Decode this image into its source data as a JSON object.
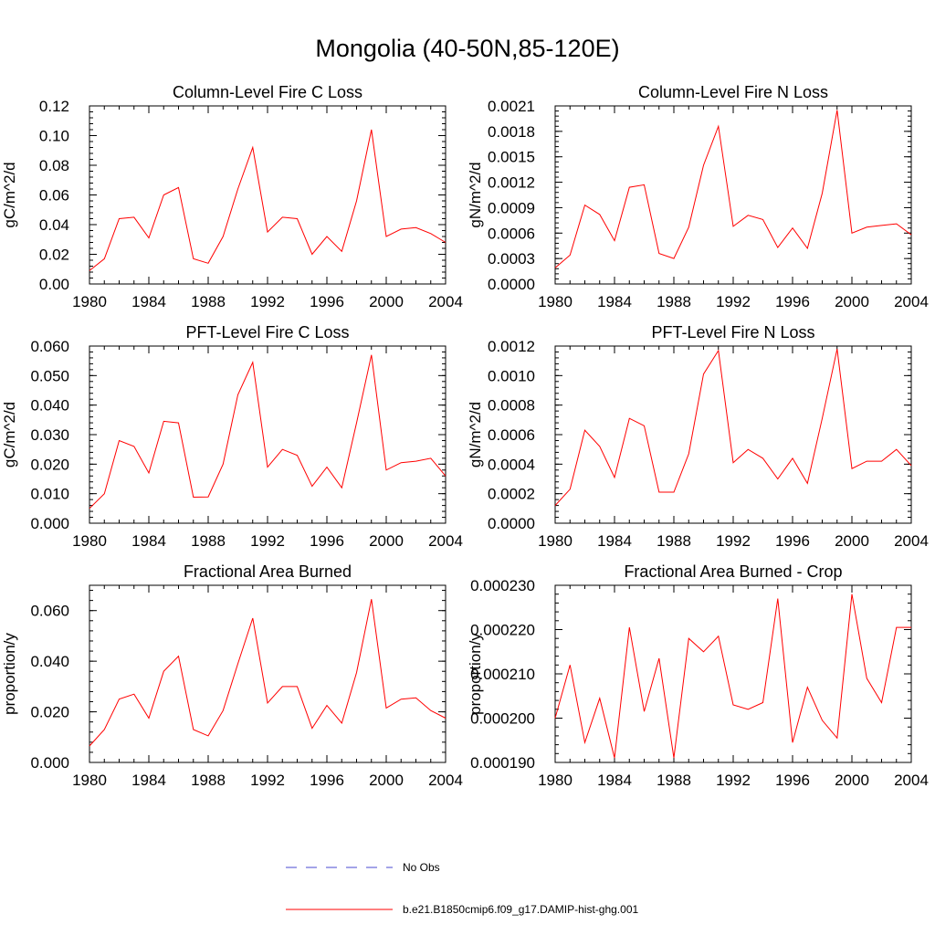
{
  "figure": {
    "title": "Mongolia (40-50N,85-120E)",
    "legend": [
      {
        "label": "No Obs",
        "style": "dashed",
        "color": "#4a4ad0"
      },
      {
        "label": "b.e21.B1850cmip6.f09_g17.DAMIP-hist-ghg.001",
        "style": "solid",
        "color": "#ff0000"
      }
    ]
  },
  "chart_data": [
    {
      "type": "line",
      "title": "Column-Level Fire C Loss",
      "ylabel": "gC/m^2/d",
      "xlim": [
        1980,
        2004
      ],
      "ylim": [
        0,
        0.12
      ],
      "xticks": [
        "1980",
        "1984",
        "1988",
        "1992",
        "1996",
        "2000",
        "2004"
      ],
      "yticks": [
        "0.00",
        "0.02",
        "0.04",
        "0.06",
        "0.08",
        "0.10",
        "0.12"
      ],
      "x": [
        1980,
        1981,
        1982,
        1983,
        1984,
        1985,
        1986,
        1987,
        1988,
        1989,
        1990,
        1991,
        1992,
        1993,
        1994,
        1995,
        1996,
        1997,
        1998,
        1999,
        2000,
        2001,
        2002,
        2003,
        2004
      ],
      "series": [
        {
          "color": "#ff0000",
          "values": [
            0.009,
            0.017,
            0.044,
            0.045,
            0.031,
            0.06,
            0.065,
            0.017,
            0.014,
            0.032,
            0.064,
            0.092,
            0.035,
            0.045,
            0.044,
            0.02,
            0.032,
            0.022,
            0.056,
            0.104,
            0.032,
            0.037,
            0.038,
            0.034,
            0.028
          ]
        }
      ]
    },
    {
      "type": "line",
      "title": "Column-Level Fire N Loss",
      "ylabel": "gN/m^2/d",
      "xlim": [
        1980,
        2004
      ],
      "ylim": [
        0,
        0.0021
      ],
      "xticks": [
        "1980",
        "1984",
        "1988",
        "1992",
        "1996",
        "2000",
        "2004"
      ],
      "yticks": [
        "0.0000",
        "0.0003",
        "0.0006",
        "0.0009",
        "0.0012",
        "0.0015",
        "0.0018",
        "0.0021"
      ],
      "x": [
        1980,
        1981,
        1982,
        1983,
        1984,
        1985,
        1986,
        1987,
        1988,
        1989,
        1990,
        1991,
        1992,
        1993,
        1994,
        1995,
        1996,
        1997,
        1998,
        1999,
        2000,
        2001,
        2002,
        2003,
        2004
      ],
      "series": [
        {
          "color": "#ff0000",
          "values": [
            0.00019,
            0.00034,
            0.00093,
            0.00082,
            0.00051,
            0.00114,
            0.00117,
            0.00036,
            0.0003,
            0.00067,
            0.0014,
            0.00186,
            0.00068,
            0.00081,
            0.00076,
            0.00043,
            0.00066,
            0.00042,
            0.00107,
            0.00205,
            0.0006,
            0.00067,
            0.00069,
            0.00071,
            0.00058
          ]
        }
      ]
    },
    {
      "type": "line",
      "title": "PFT-Level Fire C Loss",
      "ylabel": "gC/m^2/d",
      "xlim": [
        1980,
        2004
      ],
      "ylim": [
        0,
        0.06
      ],
      "xticks": [
        "1980",
        "1984",
        "1988",
        "1992",
        "1996",
        "2000",
        "2004"
      ],
      "yticks": [
        "0.000",
        "0.010",
        "0.020",
        "0.030",
        "0.040",
        "0.050",
        "0.060"
      ],
      "x": [
        1980,
        1981,
        1982,
        1983,
        1984,
        1985,
        1986,
        1987,
        1988,
        1989,
        1990,
        1991,
        1992,
        1993,
        1994,
        1995,
        1996,
        1997,
        1998,
        1999,
        2000,
        2001,
        2002,
        2003,
        2004
      ],
      "series": [
        {
          "color": "#ff0000",
          "values": [
            0.005,
            0.01,
            0.028,
            0.026,
            0.017,
            0.0345,
            0.034,
            0.0088,
            0.0089,
            0.02,
            0.0435,
            0.0545,
            0.019,
            0.025,
            0.023,
            0.0125,
            0.019,
            0.012,
            0.034,
            0.057,
            0.018,
            0.0205,
            0.021,
            0.022,
            0.016
          ]
        }
      ]
    },
    {
      "type": "line",
      "title": "PFT-Level Fire N Loss",
      "ylabel": "gN/m^2/d",
      "xlim": [
        1980,
        2004
      ],
      "ylim": [
        0,
        0.0012
      ],
      "xticks": [
        "1980",
        "1984",
        "1988",
        "1992",
        "1996",
        "2000",
        "2004"
      ],
      "yticks": [
        "0.0000",
        "0.0002",
        "0.0004",
        "0.0006",
        "0.0008",
        "0.0010",
        "0.0012"
      ],
      "x": [
        1980,
        1981,
        1982,
        1983,
        1984,
        1985,
        1986,
        1987,
        1988,
        1989,
        1990,
        1991,
        1992,
        1993,
        1994,
        1995,
        1996,
        1997,
        1998,
        1999,
        2000,
        2001,
        2002,
        2003,
        2004
      ],
      "series": [
        {
          "color": "#ff0000",
          "values": [
            0.00012,
            0.00023,
            0.00063,
            0.00052,
            0.00031,
            0.00071,
            0.00066,
            0.00021,
            0.00021,
            0.00047,
            0.00101,
            0.00117,
            0.00041,
            0.0005,
            0.00044,
            0.0003,
            0.00044,
            0.00027,
            0.00071,
            0.00118,
            0.00037,
            0.00042,
            0.00042,
            0.0005,
            0.00039
          ]
        }
      ]
    },
    {
      "type": "line",
      "title": "Fractional Area Burned",
      "ylabel": "proportion/y",
      "xlim": [
        1980,
        2004
      ],
      "ylim": [
        0,
        0.07
      ],
      "xticks": [
        "1980",
        "1984",
        "1988",
        "1992",
        "1996",
        "2000",
        "2004"
      ],
      "ytick_values": [
        0,
        0.02,
        0.04,
        0.06
      ],
      "yticks": [
        "0.000",
        "0.020",
        "0.040",
        "0.060"
      ],
      "x": [
        1980,
        1981,
        1982,
        1983,
        1984,
        1985,
        1986,
        1987,
        1988,
        1989,
        1990,
        1991,
        1992,
        1993,
        1994,
        1995,
        1996,
        1997,
        1998,
        1999,
        2000,
        2001,
        2002,
        2003,
        2004
      ],
      "series": [
        {
          "color": "#ff0000",
          "values": [
            0.0065,
            0.013,
            0.025,
            0.027,
            0.0175,
            0.036,
            0.042,
            0.013,
            0.0105,
            0.0205,
            0.039,
            0.057,
            0.0235,
            0.03,
            0.03,
            0.0135,
            0.0225,
            0.0155,
            0.0355,
            0.0645,
            0.0215,
            0.025,
            0.0255,
            0.0205,
            0.0175
          ]
        }
      ]
    },
    {
      "type": "line",
      "title": "Fractional Area Burned - Crop",
      "ylabel": "proportion/y",
      "xlim": [
        1980,
        2004
      ],
      "ylim": [
        0.00019,
        0.00023
      ],
      "xticks": [
        "1980",
        "1984",
        "1988",
        "1992",
        "1996",
        "2000",
        "2004"
      ],
      "yticks": [
        "0.000190",
        "0.000200",
        "0.000210",
        "0.000220",
        "0.000230"
      ],
      "x": [
        1980,
        1981,
        1982,
        1983,
        1984,
        1985,
        1986,
        1987,
        1988,
        1989,
        1990,
        1991,
        1992,
        1993,
        1994,
        1995,
        1996,
        1997,
        1998,
        1999,
        2000,
        2001,
        2002,
        2003,
        2004
      ],
      "series": [
        {
          "color": "#ff0000",
          "values": [
            0.0002,
            0.000212,
            0.0001945,
            0.0002045,
            0.000191,
            0.0002205,
            0.0002015,
            0.0002135,
            0.000191,
            0.000218,
            0.000215,
            0.0002185,
            0.000203,
            0.000202,
            0.0002035,
            0.000227,
            0.0001945,
            0.000207,
            0.0001995,
            0.0001955,
            0.000228,
            0.000209,
            0.0002035,
            0.0002205,
            0.0002205
          ]
        }
      ]
    }
  ]
}
